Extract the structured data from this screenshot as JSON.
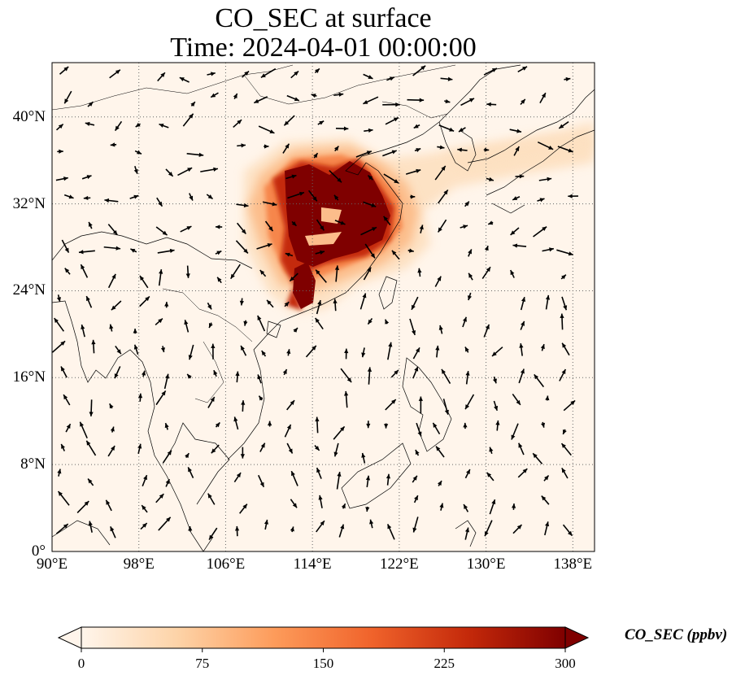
{
  "title": {
    "line1": "CO_SEC at surface",
    "line2": "Time: 2024-04-01 00:00:00"
  },
  "map": {
    "lon_range": [
      90,
      140
    ],
    "lat_range": [
      0,
      45
    ],
    "lat_ticks": [
      {
        "value": 0,
        "label": "0°"
      },
      {
        "value": 8,
        "label": "8°N"
      },
      {
        "value": 16,
        "label": "16°N"
      },
      {
        "value": 24,
        "label": "24°N"
      },
      {
        "value": 32,
        "label": "32°N"
      },
      {
        "value": 40,
        "label": "40°N"
      }
    ],
    "lon_ticks": [
      {
        "value": 90,
        "label": "90°E"
      },
      {
        "value": 98,
        "label": "98°E"
      },
      {
        "value": 106,
        "label": "106°E"
      },
      {
        "value": 114,
        "label": "114°E"
      },
      {
        "value": 122,
        "label": "122°E"
      },
      {
        "value": 130,
        "label": "130°E"
      },
      {
        "value": 138,
        "label": "138°E"
      }
    ],
    "gridlines": true,
    "colormap": [
      "#fff5eb",
      "#fdd3a7",
      "#fd9b5a",
      "#f0632b",
      "#c4290a",
      "#7f0000"
    ],
    "background_color": "#fff5eb"
  },
  "colorbar": {
    "label": "CO_SEC (ppbv)",
    "min": 0,
    "max": 300,
    "ticks": [
      {
        "value": 0,
        "label": "0"
      },
      {
        "value": 75,
        "label": "75"
      },
      {
        "value": 150,
        "label": "150"
      },
      {
        "value": 225,
        "label": "225"
      },
      {
        "value": 300,
        "label": "300"
      }
    ],
    "extend": "both"
  }
}
